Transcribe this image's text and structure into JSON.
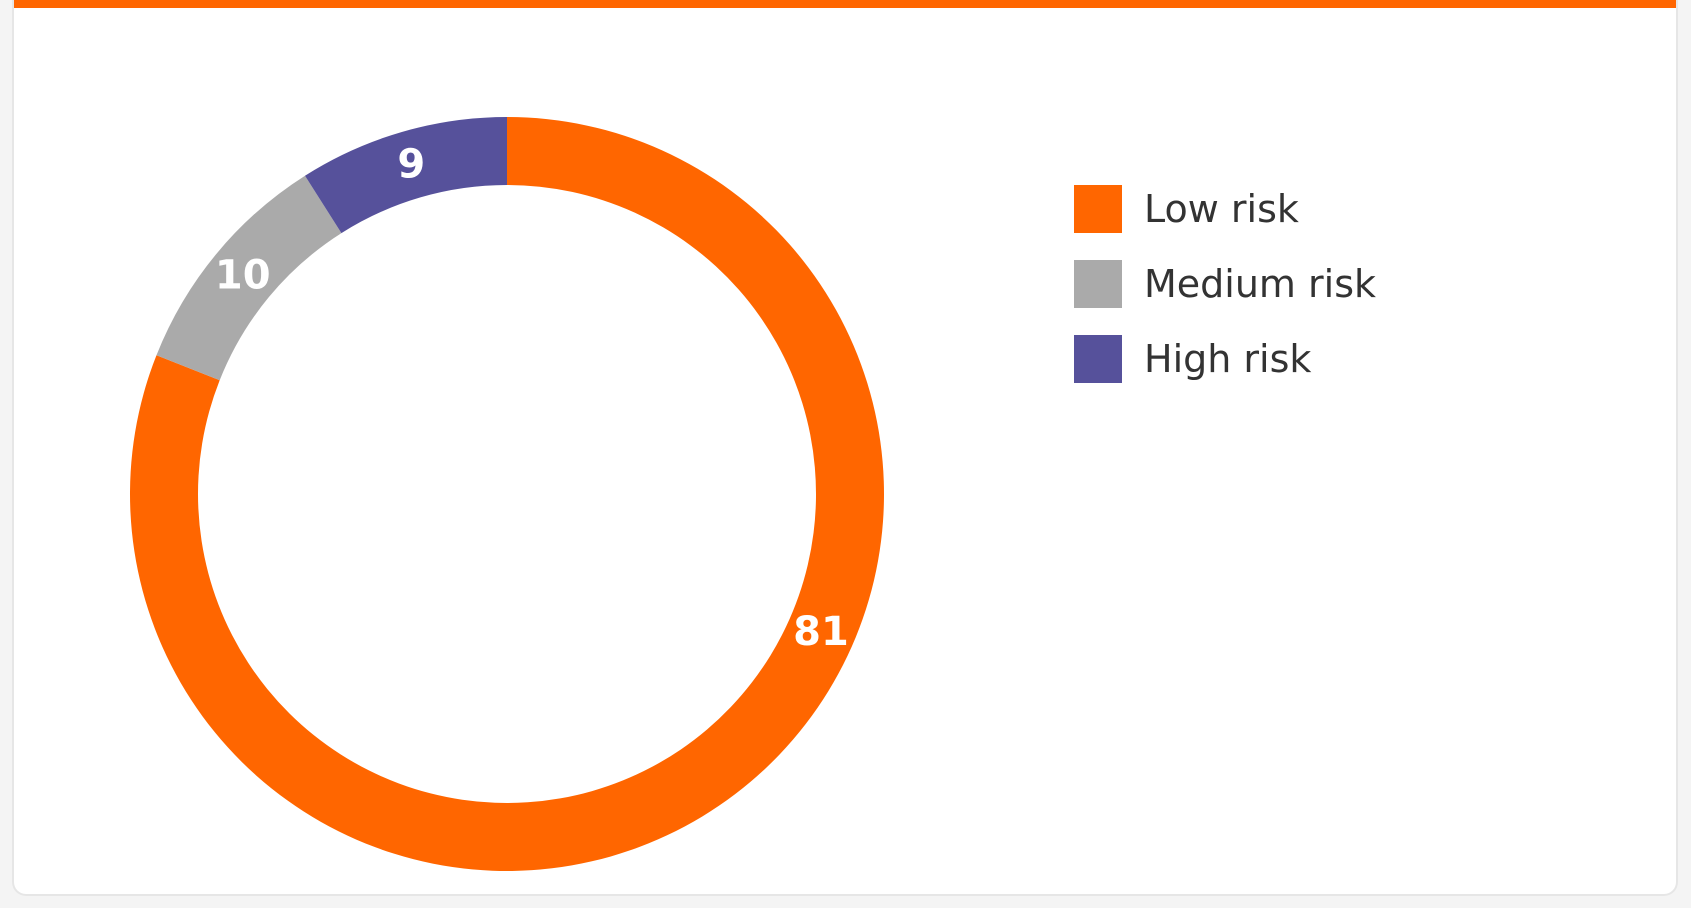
{
  "colors": {
    "accent_bar": "#ff6600"
  },
  "chart_data": {
    "type": "pie",
    "variant": "donut",
    "title": "",
    "legend_placement": "right",
    "data_labels": true,
    "slices": [
      {
        "label": "Low risk",
        "value": 81,
        "color": "#ff6600"
      },
      {
        "label": "Medium risk",
        "value": 10,
        "color": "#aaaaaa"
      },
      {
        "label": "High risk",
        "value": 9,
        "color": "#56519b"
      }
    ]
  }
}
